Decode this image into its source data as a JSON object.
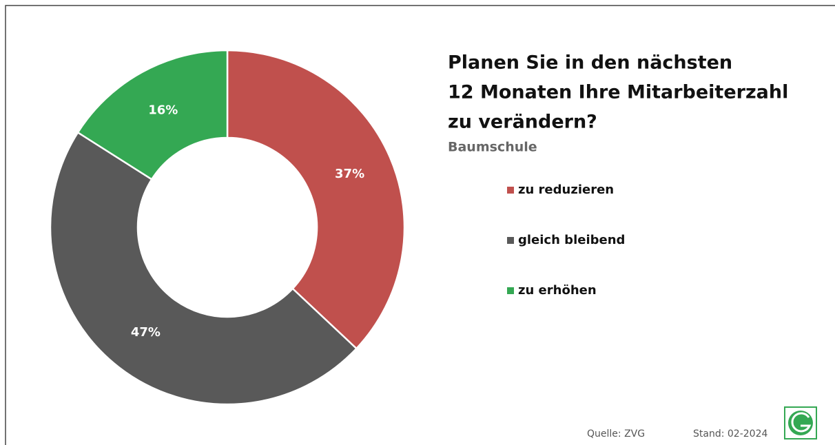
{
  "chart_data": {
    "type": "donut",
    "title": [
      "Planen Sie in den nächsten",
      "12 Monaten Ihre Mitarbeiterzahl",
      "zu verändern?"
    ],
    "subtitle": "Baumschule",
    "categories": [
      "zu reduzieren",
      "gleich bleibend",
      "zu erhöhen"
    ],
    "values": [
      37,
      47,
      16
    ],
    "value_labels": [
      "37%",
      "47%",
      "16%"
    ],
    "colors": [
      "#c0504d",
      "#595959",
      "#34a853"
    ],
    "source": "Quelle: ZVG",
    "date": "Stand: 02-2024"
  }
}
